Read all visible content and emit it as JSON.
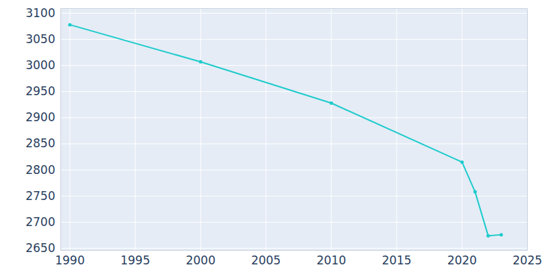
{
  "chart_data": {
    "type": "line",
    "x": [
      1990,
      2000,
      2010,
      2020,
      2021,
      2022,
      2023
    ],
    "values": [
      3078,
      3007,
      2928,
      2815,
      2758,
      2674,
      2676
    ],
    "color": "#1ccbcb",
    "marker": "circle",
    "xlim": [
      1989.3,
      2025
    ],
    "xticks": [
      1990,
      1995,
      2000,
      2005,
      2010,
      2015,
      2020,
      2025
    ],
    "ylim": [
      2646,
      3109
    ],
    "yticks": [
      2650,
      2700,
      2750,
      2800,
      2850,
      2900,
      2950,
      3000,
      3050,
      3100
    ],
    "grid": true
  }
}
